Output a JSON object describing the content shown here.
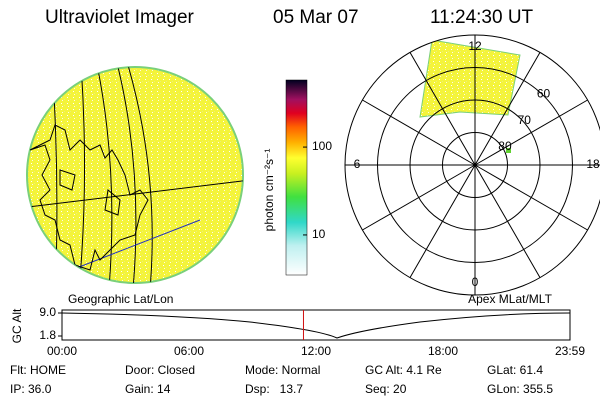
{
  "header": {
    "title": "Ultraviolet Imager",
    "date": "05 Mar 07",
    "time": "11:24:30 UT"
  },
  "geographic": {
    "caption": "Geographic Lat/Lon"
  },
  "colorbar": {
    "label": "photon cm⁻²s⁻¹",
    "scale": "log",
    "lim": [
      3.5,
      580
    ],
    "ticks": [
      10,
      100
    ]
  },
  "polar": {
    "caption": "Apex MLat/MLT",
    "mlat_lim": [
      90,
      50
    ],
    "mlat_ticks": [
      80,
      70,
      60
    ],
    "mlt_ticks": [
      12,
      18,
      6,
      0
    ]
  },
  "altitude": {
    "label": "GC Alt",
    "ticks": [
      {
        "value": 9.0,
        "label": "9.0"
      },
      {
        "value": 1.8,
        "label": "1.8"
      }
    ],
    "time_ticks": [
      "00:00",
      "06:00",
      "12:00",
      "18:00",
      "23:59"
    ]
  },
  "footer": {
    "rows": [
      [
        "Flt: HOME",
        "Door: Closed",
        "Mode: Normal",
        "GC Alt: 4.1 Re",
        "GLat: 61.4"
      ],
      [
        "IP: 36.0",
        "Gain: 14",
        "Dsp:   13.7",
        "Seq: 20",
        "GLon: 355.5"
      ]
    ]
  }
}
